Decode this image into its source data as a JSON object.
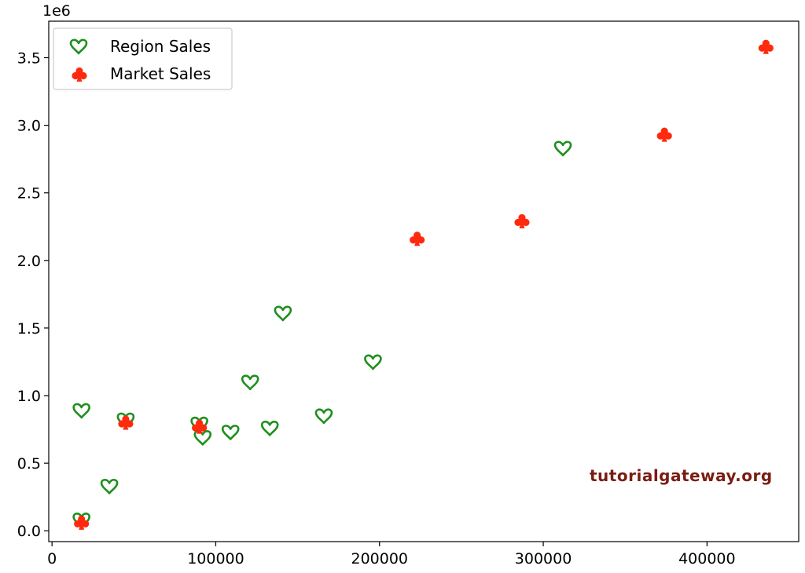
{
  "chart_data": {
    "type": "scatter",
    "title": "",
    "xlabel": "",
    "ylabel": "",
    "y_offset_label": "1e6",
    "xlim": [
      -2000,
      456000
    ],
    "ylim": [
      -0.08,
      3.77
    ],
    "x_ticks": [
      {
        "value": 0,
        "label": "0"
      },
      {
        "value": 100000,
        "label": "100000"
      },
      {
        "value": 200000,
        "label": "200000"
      },
      {
        "value": 300000,
        "label": "300000"
      },
      {
        "value": 400000,
        "label": "400000"
      }
    ],
    "y_ticks": [
      {
        "value": 0.0,
        "label": "0.0"
      },
      {
        "value": 0.5,
        "label": "0.5"
      },
      {
        "value": 1.0,
        "label": "1.0"
      },
      {
        "value": 1.5,
        "label": "1.5"
      },
      {
        "value": 2.0,
        "label": "2.0"
      },
      {
        "value": 2.5,
        "label": "2.5"
      },
      {
        "value": 3.0,
        "label": "3.0"
      },
      {
        "value": 3.5,
        "label": "3.5"
      }
    ],
    "grid": false,
    "legend_placement": "upper-left",
    "series": [
      {
        "name": "Region Sales",
        "marker": "heart-outline",
        "color": "#1f8f1f",
        "points": [
          {
            "x": 18000,
            "y": 0.89
          },
          {
            "x": 18000,
            "y": 0.08
          },
          {
            "x": 35000,
            "y": 0.33
          },
          {
            "x": 45000,
            "y": 0.82
          },
          {
            "x": 90000,
            "y": 0.79
          },
          {
            "x": 92000,
            "y": 0.69
          },
          {
            "x": 109000,
            "y": 0.73
          },
          {
            "x": 121000,
            "y": 1.1
          },
          {
            "x": 133000,
            "y": 0.76
          },
          {
            "x": 141000,
            "y": 1.61
          },
          {
            "x": 166000,
            "y": 0.85
          },
          {
            "x": 196000,
            "y": 1.25
          },
          {
            "x": 312000,
            "y": 2.83
          }
        ]
      },
      {
        "name": "Market Sales",
        "marker": "club-filled",
        "color": "#ff2a0e",
        "points": [
          {
            "x": 18000,
            "y": 0.06
          },
          {
            "x": 45000,
            "y": 0.8
          },
          {
            "x": 90000,
            "y": 0.77
          },
          {
            "x": 223000,
            "y": 2.16
          },
          {
            "x": 287000,
            "y": 2.29
          },
          {
            "x": 374000,
            "y": 2.93
          },
          {
            "x": 436000,
            "y": 3.58
          }
        ]
      }
    ],
    "watermark": "tutorialgateway.org"
  }
}
